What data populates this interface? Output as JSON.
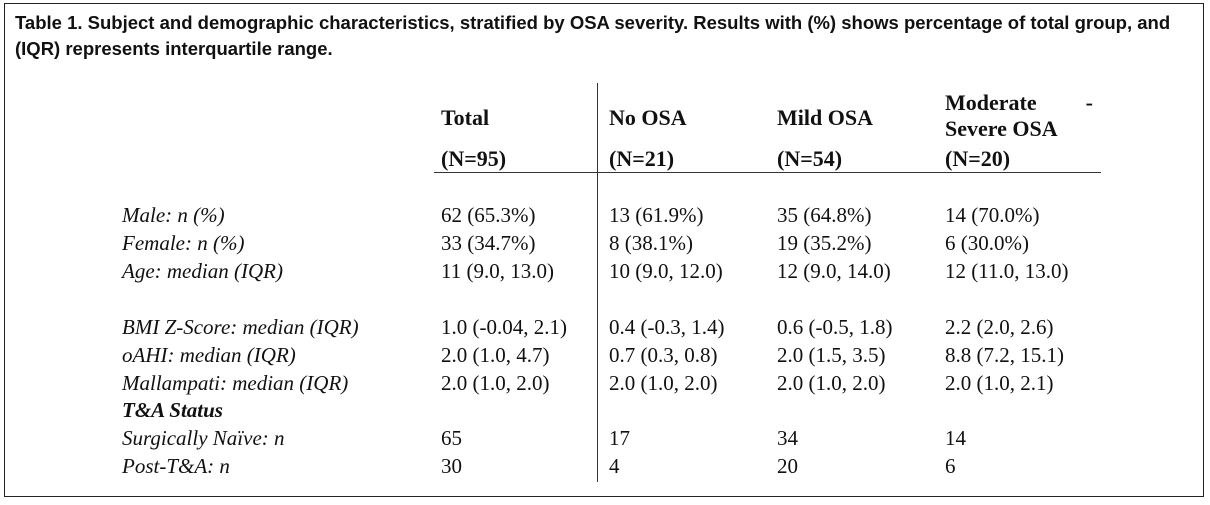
{
  "caption": "Table 1. Subject and demographic characteristics, stratified by OSA severity. Results with (%) shows percentage of total group, and (IQR) represents interquartile range.",
  "columns": [
    {
      "label": "Total",
      "n": "(N=95)"
    },
    {
      "label": "No OSA",
      "n": "(N=21)"
    },
    {
      "label": "Mild OSA",
      "n": "(N=54)"
    },
    {
      "label_line1": "Moderate",
      "label_dash": "-",
      "label_line2": "Severe OSA",
      "n": "(N=20)"
    }
  ],
  "rows": [
    {
      "label": "Male:  n (%)",
      "cells": [
        "62 (65.3%)",
        "13 (61.9%)",
        "35 (64.8%)",
        "14 (70.0%)"
      ]
    },
    {
      "label": "Female: n (%)",
      "cells": [
        "33 (34.7%)",
        "8 (38.1%)",
        "19 (35.2%)",
        "6 (30.0%)"
      ]
    },
    {
      "label": "Age: median (IQR)",
      "cells": [
        "11 (9.0, 13.0)",
        "10 (9.0, 12.0)",
        "12 (9.0, 14.0)",
        "12 (11.0, 13.0)"
      ]
    },
    {
      "label": "BMI Z-Score: median (IQR)",
      "cells": [
        "1.0 (-0.04, 2.1)",
        "0.4 (-0.3, 1.4)",
        "0.6 (-0.5, 1.8)",
        "2.2 (2.0, 2.6)"
      ]
    },
    {
      "label": "oAHI: median (IQR)",
      "cells": [
        "2.0 (1.0, 4.7)",
        "0.7 (0.3, 0.8)",
        "2.0 (1.5, 3.5)",
        "8.8 (7.2, 15.1)"
      ]
    },
    {
      "label": "Mallampati: median (IQR)",
      "cells": [
        "2.0 (1.0, 2.0)",
        "2.0 (1.0, 2.0)",
        "2.0 (1.0, 2.0)",
        "2.0 (1.0, 2.1)"
      ]
    },
    {
      "label": "T&A Status",
      "cells": [
        "",
        "",
        "",
        ""
      ]
    },
    {
      "label": "Surgically Naïve: n",
      "cells": [
        "65",
        "17",
        "34",
        "14"
      ]
    },
    {
      "label": "Post-T&A: n",
      "cells": [
        "30",
        "4",
        "20",
        "6"
      ]
    }
  ]
}
